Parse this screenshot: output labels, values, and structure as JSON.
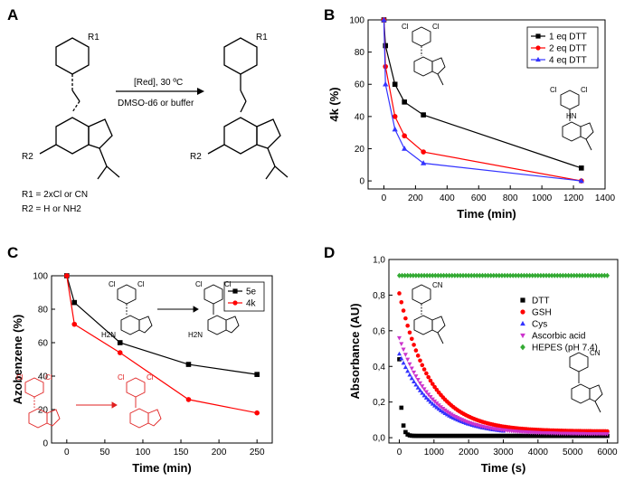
{
  "panels": {
    "a": {
      "letter": "A",
      "arrow_top": "[Red], 30 ºC",
      "arrow_bottom": "DMSO-d6 or buffer",
      "r1_def": "R1 = 2xCl or CN",
      "r2_def": "R2 = H or NH2",
      "r1": "R1",
      "r2": "R2"
    },
    "b": {
      "letter": "B"
    },
    "c": {
      "letter": "C"
    },
    "d": {
      "letter": "D"
    }
  },
  "chart_data": [
    {
      "panel": "B",
      "type": "line",
      "xlabel": "Time (min)",
      "ylabel": "4k (%)",
      "xlim": [
        -100,
        1400
      ],
      "ylim": [
        -5,
        100
      ],
      "xticks": [
        0,
        200,
        400,
        600,
        800,
        1000,
        1200,
        1400
      ],
      "yticks": [
        0,
        20,
        40,
        60,
        80,
        100
      ],
      "legend_position": "top-right",
      "series": [
        {
          "name": "1 eq DTT",
          "color": "#000000",
          "marker": "square",
          "x": [
            0,
            10,
            70,
            130,
            250,
            1250
          ],
          "y": [
            100,
            84,
            60,
            49,
            41,
            8
          ]
        },
        {
          "name": "2 eq DTT",
          "color": "#ff0000",
          "marker": "circle",
          "x": [
            0,
            10,
            70,
            130,
            250,
            1250
          ],
          "y": [
            100,
            71,
            40,
            28,
            18,
            0
          ]
        },
        {
          "name": "4 eq DTT",
          "color": "#3333ff",
          "marker": "triangle",
          "x": [
            0,
            10,
            70,
            130,
            250,
            1250
          ],
          "y": [
            100,
            60,
            32,
            20,
            11,
            0
          ]
        }
      ]
    },
    {
      "panel": "C",
      "type": "line",
      "xlabel": "Time (min)",
      "ylabel": "Azobenzene (%)",
      "xlim": [
        -20,
        270
      ],
      "ylim": [
        0,
        100
      ],
      "xticks": [
        0,
        50,
        100,
        150,
        200,
        250
      ],
      "yticks": [
        0,
        20,
        40,
        60,
        80,
        100
      ],
      "legend_position": "top-right",
      "series": [
        {
          "name": "5e",
          "color": "#000000",
          "marker": "square",
          "x": [
            0,
            10,
            70,
            160,
            250
          ],
          "y": [
            100,
            84,
            60,
            47,
            41
          ]
        },
        {
          "name": "4k",
          "color": "#ff0000",
          "marker": "circle",
          "x": [
            0,
            10,
            70,
            160,
            250
          ],
          "y": [
            100,
            71,
            54,
            26,
            18
          ]
        }
      ]
    },
    {
      "panel": "D",
      "type": "scatter",
      "xlabel": "Time (s)",
      "ylabel": "Absorbance (AU)",
      "xlim": [
        -300,
        6300
      ],
      "ylim": [
        -0.03,
        1.0
      ],
      "xticks": [
        0,
        1000,
        2000,
        3000,
        4000,
        5000,
        6000
      ],
      "yticks": [
        "0,0",
        "0,2",
        "0,4",
        "0,6",
        "0,8",
        "1,0"
      ],
      "legend_position": "right",
      "series": [
        {
          "name": "DTT",
          "color": "#000000",
          "marker": "square",
          "model": "exp",
          "y0": 0.44,
          "tau": 60,
          "plateau": 0.01,
          "x_end": 6000
        },
        {
          "name": "GSH",
          "color": "#ff0000",
          "marker": "circle",
          "model": "exp",
          "y0": 0.81,
          "tau": 900,
          "plateau": 0.035,
          "x_end": 6000
        },
        {
          "name": "Cys",
          "color": "#3333ff",
          "marker": "triangle",
          "model": "exp",
          "y0": 0.47,
          "tau": 1000,
          "plateau": 0.015,
          "x_end": 3000
        },
        {
          "name": "Ascorbic acid",
          "color": "#cc33cc",
          "marker": "triangle-down",
          "model": "exp",
          "y0": 0.56,
          "tau": 950,
          "plateau": 0.02,
          "x_end": 6000
        },
        {
          "name": "HEPES (pH 7.4)",
          "color": "#33aa33",
          "marker": "diamond",
          "model": "const",
          "value": 0.91,
          "x_end": 6000
        }
      ]
    }
  ],
  "chem_labels": {
    "cl": "Cl",
    "cn": "CN",
    "h2n": "H2N",
    "hn": "HN",
    "nh": "NH",
    "n": "N"
  }
}
